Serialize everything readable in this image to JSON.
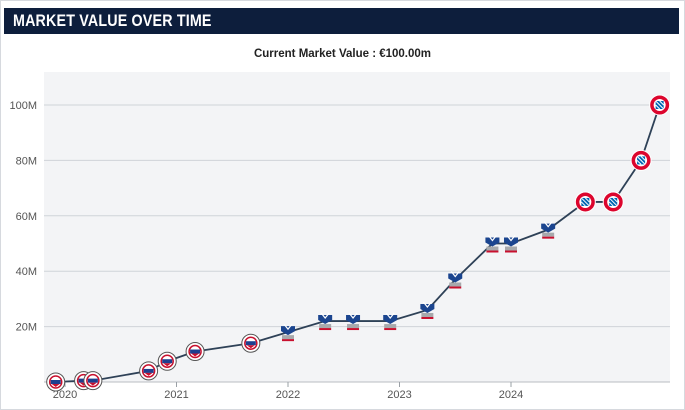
{
  "header": {
    "title": "MARKET VALUE OVER TIME"
  },
  "chart_data": {
    "type": "line",
    "subtitle": "Current Market Value : €100.00m",
    "ylim": [
      0,
      100
    ],
    "y_ticks": [
      20,
      40,
      60,
      80,
      100
    ],
    "y_tick_labels": [
      "20M",
      "40M",
      "60M",
      "80M",
      "100M"
    ],
    "x_ticks": [
      2020,
      2021,
      2022,
      2023,
      2024
    ],
    "x_tick_labels": [
      "2020",
      "2021",
      "2022",
      "2023",
      "2024"
    ],
    "grid": true,
    "series": [
      {
        "x": [
          "2019-12",
          "2020-03",
          "2020-04",
          "2020-10",
          "2020-12",
          "2021-03",
          "2021-09",
          "2022-01",
          "2022-05",
          "2022-08",
          "2022-12",
          "2023-04",
          "2023-07",
          "2023-11",
          "2024-01",
          "2024-05",
          "2024-09",
          "2024-12",
          "2025-03",
          "2025-05"
        ],
        "values": [
          0,
          0.5,
          0.5,
          4,
          7.5,
          11,
          14,
          18,
          22,
          22,
          22,
          26,
          37,
          50,
          50,
          55,
          65,
          65,
          80,
          100
        ],
        "club": [
          "Reading",
          "Reading",
          "Reading",
          "Reading",
          "Reading",
          "Reading",
          "Reading",
          "Crystal Palace",
          "Crystal Palace",
          "Crystal Palace",
          "Crystal Palace",
          "Crystal Palace",
          "Crystal Palace",
          "Crystal Palace",
          "Crystal Palace",
          "Crystal Palace",
          "Bayern Munich",
          "Bayern Munich",
          "Bayern Munich",
          "Bayern Munich"
        ]
      }
    ]
  },
  "colors": {
    "header_bg": "#0d1e3c",
    "line": "#2e4157",
    "plot_bg": "#f3f4f6",
    "grid": "#cfd3d8",
    "reading": "#c8102e",
    "palace": "#1b458f",
    "bayern": "#dc052d"
  }
}
